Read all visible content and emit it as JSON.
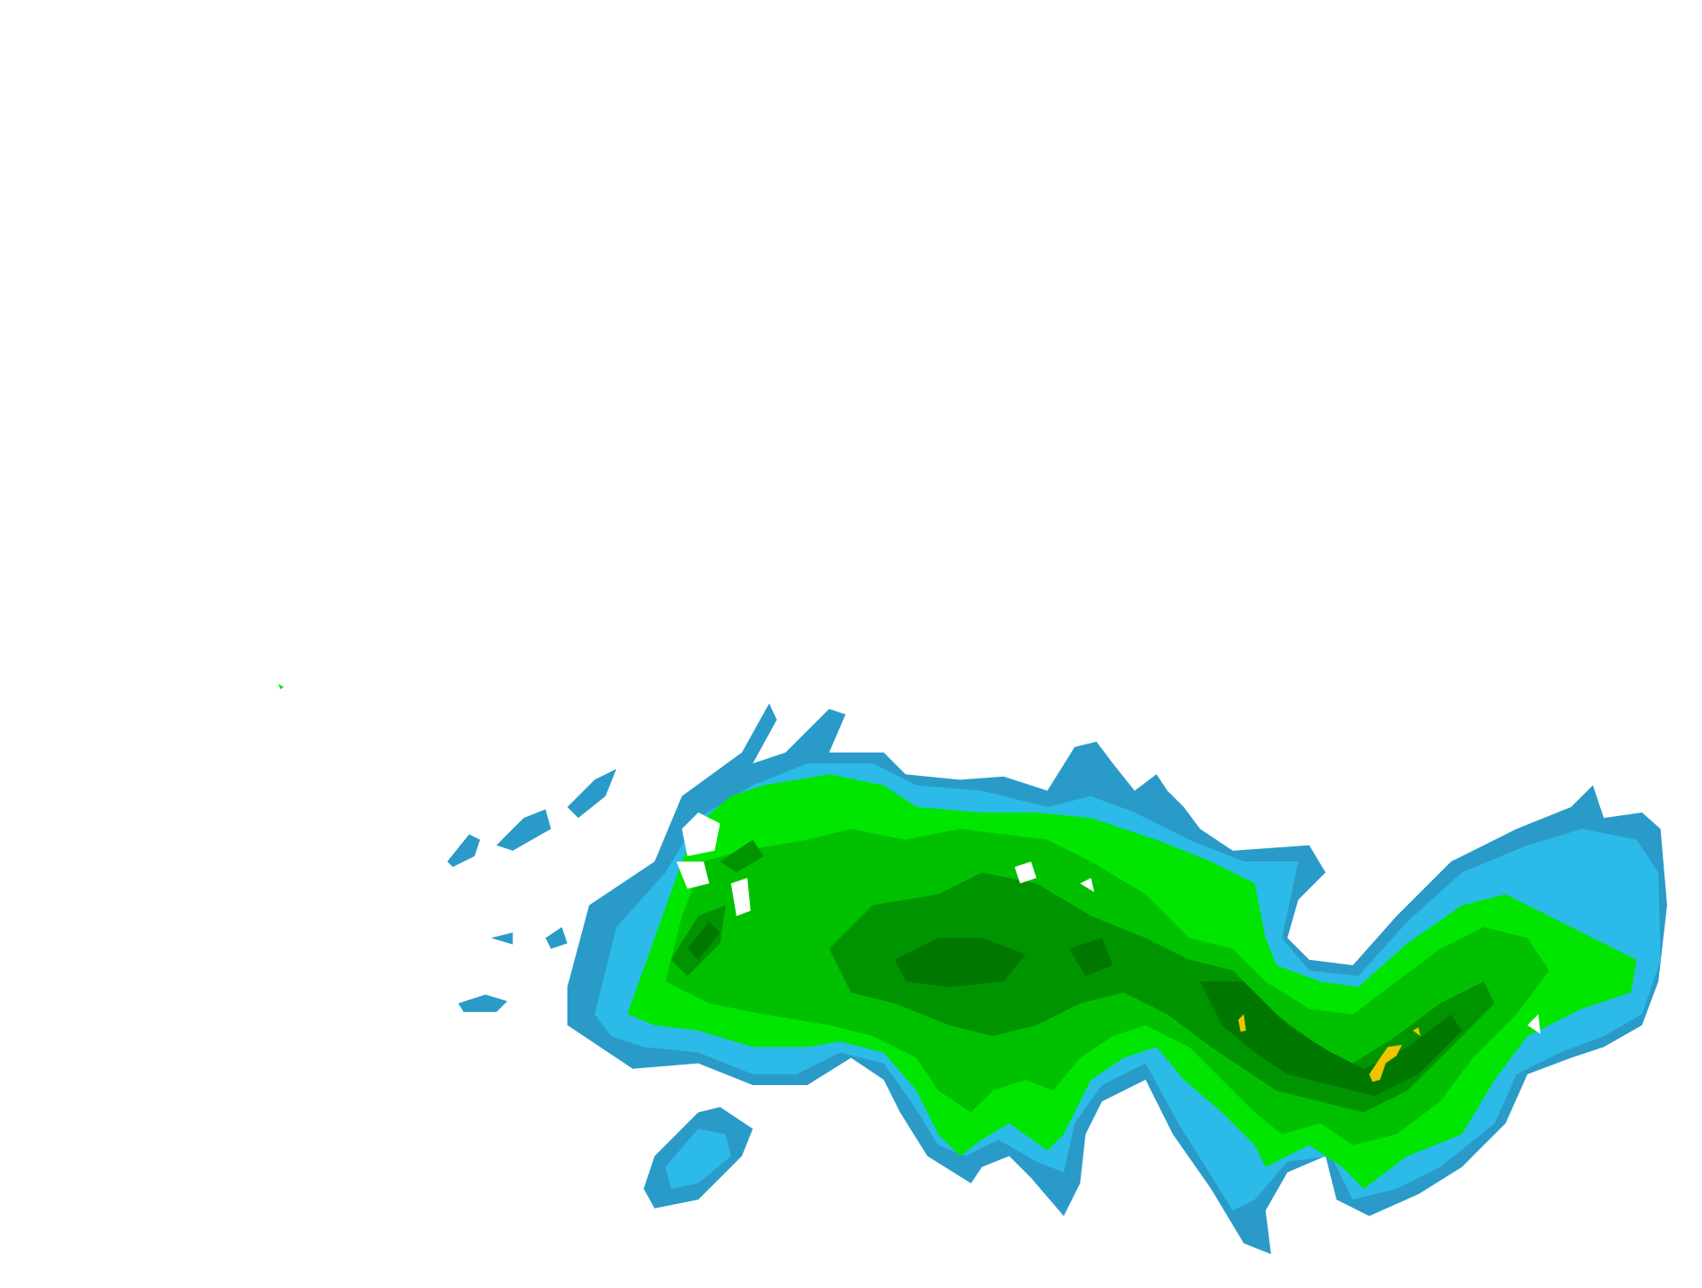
{
  "map": {
    "kind": "weather-radar-reflectivity",
    "background": "#ffffff",
    "palette": {
      "light_echo_dark_blue": "#2a9bc8",
      "light_echo_blue": "#2cbbe8",
      "moderate_bright_green": "#00e600",
      "moderate_green": "#00c000",
      "heavy_dark_green": "#009400",
      "heavy_darker_green": "#007800",
      "intense_yellow": "#f0c400"
    }
  }
}
